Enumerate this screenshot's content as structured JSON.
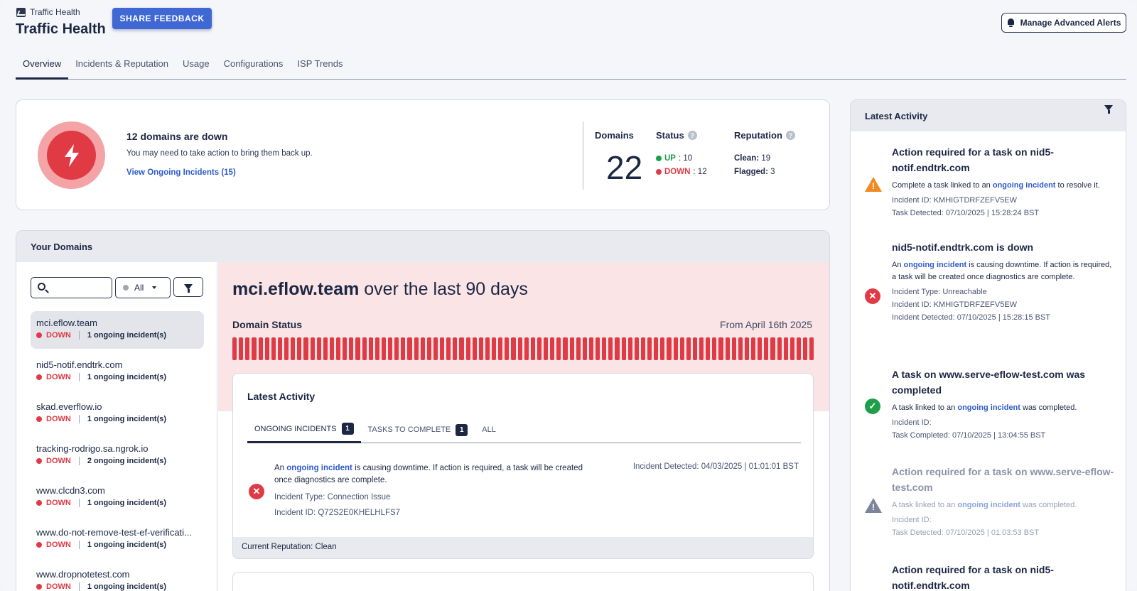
{
  "header": {
    "breadcrumb": "Traffic Health",
    "title": "Traffic Health",
    "share_feedback": "SHARE FEEDBACK",
    "manage_alerts": "Manage Advanced Alerts"
  },
  "tabs": [
    "Overview",
    "Incidents & Reputation",
    "Usage",
    "Configurations",
    "ISP Trends"
  ],
  "summary": {
    "title": "12 domains are down",
    "subtitle": "You may need to take action to bring them back up.",
    "link": "View Ongoing Incidents (15)",
    "domains_label": "Domains",
    "domains_count": "22",
    "status_label": "Status",
    "up_label": "UP",
    "up_count": ": 10",
    "down_label": "DOWN",
    "down_count": ": 12",
    "reputation_label": "Reputation",
    "clean_label": "Clean:",
    "clean_count": " 19",
    "flagged_label": "Flagged:",
    "flagged_count": " 3",
    "colors": {
      "danger": "#e03a45",
      "success": "#1f9e4a",
      "accent": "#3f68d4"
    }
  },
  "domains": {
    "header": "Your Domains",
    "filter_value": "All",
    "items": [
      {
        "name": "mci.eflow.team",
        "status": "DOWN",
        "incidents": "1 ongoing incident(s)"
      },
      {
        "name": "nid5-notif.endtrk.com",
        "status": "DOWN",
        "incidents": "1 ongoing incident(s)"
      },
      {
        "name": "skad.everflow.io",
        "status": "DOWN",
        "incidents": "1 ongoing incident(s)"
      },
      {
        "name": "tracking-rodrigo.sa.ngrok.io",
        "status": "DOWN",
        "incidents": "2 ongoing incident(s)"
      },
      {
        "name": "www.clcdn3.com",
        "status": "DOWN",
        "incidents": "1 ongoing incident(s)"
      },
      {
        "name": "www.do-not-remove-test-ef-verificati...",
        "status": "DOWN",
        "incidents": "1 ongoing incident(s)"
      },
      {
        "name": "www.dropnotetest.com",
        "status": "DOWN",
        "incidents": "1 ongoing incident(s)"
      }
    ]
  },
  "detail": {
    "domain": "mci.eflow.team",
    "title_suffix": " over the last 90 days",
    "status_label": "Domain Status",
    "from_date": "From April 16th 2025",
    "status_days": 90,
    "activity": {
      "title": "Latest Activity",
      "tabs": [
        {
          "label": "ONGOING INCIDENTS",
          "count": "1"
        },
        {
          "label": "TASKS TO COMPLETE",
          "count": "1"
        },
        {
          "label": "ALL",
          "count": ""
        }
      ],
      "incident": {
        "text_pre": "An ",
        "link": "ongoing incident",
        "text_post": " is causing downtime. If action is required, a task will be created once diagnostics are complete.",
        "type": "Incident Type: Connection Issue",
        "id": "Incident ID: Q72S2E0KHELHLFS7",
        "detected": "Incident Detected: 04/03/2025  |  01:01:01 BST"
      },
      "footer": "Current Reputation: Clean"
    }
  },
  "latest_activity": {
    "header": "Latest Activity",
    "items": [
      {
        "title": "Action required for a task on nid5-notif.endtrk.com",
        "line_pre": "Complete a task linked to an ",
        "link": "ongoing incident",
        "line_post": " to resolve it.",
        "meta": [
          "Incident ID: KMHIGTDRFZEFV5EW",
          "Task Detected: 07/10/2025  |  15:28:24 BST"
        ]
      },
      {
        "title": "nid5-notif.endtrk.com is down",
        "line_pre": "An ",
        "link": "ongoing incident",
        "line_post": " is causing downtime. If action is required, a task will be created once diagnostics are complete.",
        "meta": [
          "Incident Type: Unreachable",
          "Incident ID: KMHIGTDRFZEFV5EW",
          "Incident Detected: 07/10/2025  |  15:28:15 BST"
        ]
      },
      {
        "title": "A task on www.serve-eflow-test.com was completed",
        "line_pre": "A task linked to an ",
        "link": "ongoing incident",
        "line_post": " was completed.",
        "meta": [
          "Incident ID:",
          "Task Completed: 07/10/2025  |  13:04:55 BST"
        ]
      },
      {
        "title": "Action required for a task on www.serve-eflow-test.com",
        "line_pre": "A task linked to an ",
        "link": "ongoing incident",
        "line_post": " was completed.",
        "meta": [
          "Incident ID:",
          "Task Detected: 07/10/2025  |  01:03:53 BST"
        ]
      },
      {
        "title": "Action required for a task on nid5-notif.endtrk.com",
        "line_pre": "",
        "link": "",
        "line_post": "",
        "meta": []
      }
    ]
  }
}
